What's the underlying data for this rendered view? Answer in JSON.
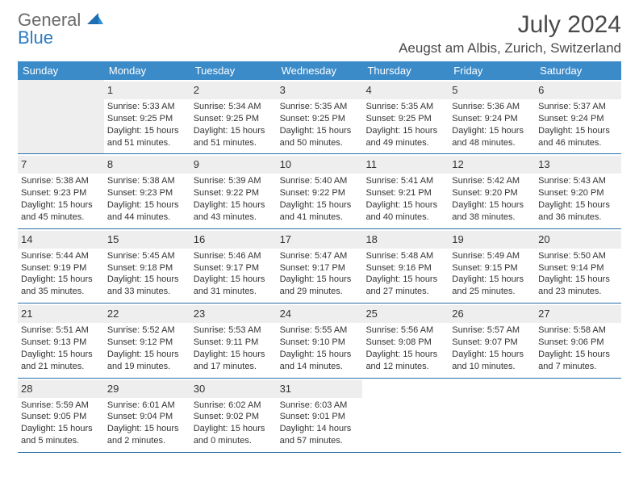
{
  "brand": {
    "word1": "General",
    "word2": "Blue"
  },
  "title": "July 2024",
  "location": "Aeugst am Albis, Zurich, Switzerland",
  "weekdays": [
    "Sunday",
    "Monday",
    "Tuesday",
    "Wednesday",
    "Thursday",
    "Friday",
    "Saturday"
  ],
  "colors": {
    "header_bg": "#3b8bc9",
    "daynum_bg": "#eeeeee",
    "week_border": "#2b6fa8",
    "text": "#333333",
    "brand_gray": "#6b6b6b",
    "brand_blue": "#2b7bbf"
  },
  "weeks": [
    [
      {
        "empty": true
      },
      {
        "n": "1",
        "sr": "5:33 AM",
        "ss": "9:25 PM",
        "dl": "Daylight: 15 hours and 51 minutes."
      },
      {
        "n": "2",
        "sr": "5:34 AM",
        "ss": "9:25 PM",
        "dl": "Daylight: 15 hours and 51 minutes."
      },
      {
        "n": "3",
        "sr": "5:35 AM",
        "ss": "9:25 PM",
        "dl": "Daylight: 15 hours and 50 minutes."
      },
      {
        "n": "4",
        "sr": "5:35 AM",
        "ss": "9:25 PM",
        "dl": "Daylight: 15 hours and 49 minutes."
      },
      {
        "n": "5",
        "sr": "5:36 AM",
        "ss": "9:24 PM",
        "dl": "Daylight: 15 hours and 48 minutes."
      },
      {
        "n": "6",
        "sr": "5:37 AM",
        "ss": "9:24 PM",
        "dl": "Daylight: 15 hours and 46 minutes."
      }
    ],
    [
      {
        "n": "7",
        "sr": "5:38 AM",
        "ss": "9:23 PM",
        "dl": "Daylight: 15 hours and 45 minutes."
      },
      {
        "n": "8",
        "sr": "5:38 AM",
        "ss": "9:23 PM",
        "dl": "Daylight: 15 hours and 44 minutes."
      },
      {
        "n": "9",
        "sr": "5:39 AM",
        "ss": "9:22 PM",
        "dl": "Daylight: 15 hours and 43 minutes."
      },
      {
        "n": "10",
        "sr": "5:40 AM",
        "ss": "9:22 PM",
        "dl": "Daylight: 15 hours and 41 minutes."
      },
      {
        "n": "11",
        "sr": "5:41 AM",
        "ss": "9:21 PM",
        "dl": "Daylight: 15 hours and 40 minutes."
      },
      {
        "n": "12",
        "sr": "5:42 AM",
        "ss": "9:20 PM",
        "dl": "Daylight: 15 hours and 38 minutes."
      },
      {
        "n": "13",
        "sr": "5:43 AM",
        "ss": "9:20 PM",
        "dl": "Daylight: 15 hours and 36 minutes."
      }
    ],
    [
      {
        "n": "14",
        "sr": "5:44 AM",
        "ss": "9:19 PM",
        "dl": "Daylight: 15 hours and 35 minutes."
      },
      {
        "n": "15",
        "sr": "5:45 AM",
        "ss": "9:18 PM",
        "dl": "Daylight: 15 hours and 33 minutes."
      },
      {
        "n": "16",
        "sr": "5:46 AM",
        "ss": "9:17 PM",
        "dl": "Daylight: 15 hours and 31 minutes."
      },
      {
        "n": "17",
        "sr": "5:47 AM",
        "ss": "9:17 PM",
        "dl": "Daylight: 15 hours and 29 minutes."
      },
      {
        "n": "18",
        "sr": "5:48 AM",
        "ss": "9:16 PM",
        "dl": "Daylight: 15 hours and 27 minutes."
      },
      {
        "n": "19",
        "sr": "5:49 AM",
        "ss": "9:15 PM",
        "dl": "Daylight: 15 hours and 25 minutes."
      },
      {
        "n": "20",
        "sr": "5:50 AM",
        "ss": "9:14 PM",
        "dl": "Daylight: 15 hours and 23 minutes."
      }
    ],
    [
      {
        "n": "21",
        "sr": "5:51 AM",
        "ss": "9:13 PM",
        "dl": "Daylight: 15 hours and 21 minutes."
      },
      {
        "n": "22",
        "sr": "5:52 AM",
        "ss": "9:12 PM",
        "dl": "Daylight: 15 hours and 19 minutes."
      },
      {
        "n": "23",
        "sr": "5:53 AM",
        "ss": "9:11 PM",
        "dl": "Daylight: 15 hours and 17 minutes."
      },
      {
        "n": "24",
        "sr": "5:55 AM",
        "ss": "9:10 PM",
        "dl": "Daylight: 15 hours and 14 minutes."
      },
      {
        "n": "25",
        "sr": "5:56 AM",
        "ss": "9:08 PM",
        "dl": "Daylight: 15 hours and 12 minutes."
      },
      {
        "n": "26",
        "sr": "5:57 AM",
        "ss": "9:07 PM",
        "dl": "Daylight: 15 hours and 10 minutes."
      },
      {
        "n": "27",
        "sr": "5:58 AM",
        "ss": "9:06 PM",
        "dl": "Daylight: 15 hours and 7 minutes."
      }
    ],
    [
      {
        "n": "28",
        "sr": "5:59 AM",
        "ss": "9:05 PM",
        "dl": "Daylight: 15 hours and 5 minutes."
      },
      {
        "n": "29",
        "sr": "6:01 AM",
        "ss": "9:04 PM",
        "dl": "Daylight: 15 hours and 2 minutes."
      },
      {
        "n": "30",
        "sr": "6:02 AM",
        "ss": "9:02 PM",
        "dl": "Daylight: 15 hours and 0 minutes."
      },
      {
        "n": "31",
        "sr": "6:03 AM",
        "ss": "9:01 PM",
        "dl": "Daylight: 14 hours and 57 minutes."
      },
      {
        "empty": true
      },
      {
        "empty": true
      },
      {
        "empty": true
      }
    ]
  ],
  "labels": {
    "sunrise": "Sunrise:",
    "sunset": "Sunset:"
  }
}
